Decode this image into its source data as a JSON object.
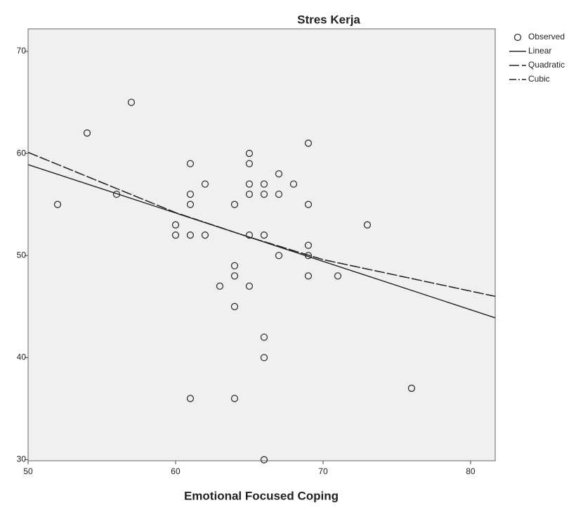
{
  "chart_data": {
    "type": "scatter",
    "title": "Stres Kerja",
    "x_label": "Emotional Focused Coping",
    "xlim": [
      50,
      81.67
    ],
    "ylim": [
      29.9,
      72.2
    ],
    "xticks": [
      50,
      60,
      70,
      80
    ],
    "yticks": [
      30,
      40,
      50,
      60,
      70
    ],
    "series": [
      {
        "name": "Observed",
        "kind": "points",
        "color": "#333333",
        "x": [
          52,
          54,
          56,
          57,
          60,
          60,
          61,
          61,
          61,
          61,
          61,
          62,
          62,
          63,
          64,
          64,
          64,
          64,
          64,
          65,
          65,
          65,
          65,
          65,
          65,
          66,
          66,
          66,
          66,
          66,
          66,
          67,
          67,
          67,
          68,
          69,
          69,
          69,
          69,
          69,
          71,
          73,
          76
        ],
        "values": [
          55,
          62,
          56,
          65,
          53,
          52,
          59,
          56,
          55,
          52,
          36,
          57,
          52,
          47,
          55,
          49,
          48,
          45,
          36,
          60,
          59,
          57,
          56,
          52,
          47,
          57,
          56,
          52,
          42,
          40,
          30,
          58,
          56,
          50,
          57,
          61,
          55,
          51,
          50,
          48,
          48,
          53,
          37
        ]
      },
      {
        "name": "Linear",
        "kind": "line",
        "color": "#222222",
        "dash": "none",
        "x": [
          50,
          81.67
        ],
        "values": [
          58.9,
          43.9
        ]
      },
      {
        "name": "Quadratic",
        "kind": "line",
        "color": "#222222",
        "dash": "14 4",
        "x": [
          50,
          60,
          65,
          70,
          81.67
        ],
        "values": [
          60.1,
          54.2,
          51.8,
          49.6,
          46.0
        ]
      },
      {
        "name": "Cubic",
        "kind": "line",
        "color": "#222222",
        "dash": "10 3 2 3",
        "x": [
          50,
          60,
          65,
          70,
          81.67
        ],
        "values": [
          60.1,
          54.2,
          51.8,
          49.6,
          46.0
        ]
      }
    ]
  }
}
